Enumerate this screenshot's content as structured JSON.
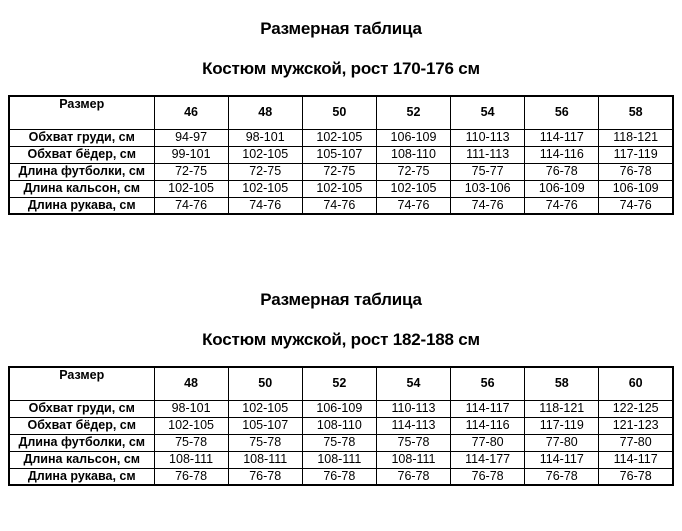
{
  "page": {
    "background": "#ffffff",
    "text_color": "#000000",
    "border_color": "#000000"
  },
  "sections": [
    {
      "title": "Размерная таблица",
      "subtitle": "Костюм мужской, рост 170-176 см",
      "corner_label": "Размер",
      "sizes": [
        "46",
        "48",
        "50",
        "52",
        "54",
        "56",
        "58"
      ],
      "rows": [
        {
          "label": "Обхват груди, см",
          "values": [
            "94-97",
            "98-101",
            "102-105",
            "106-109",
            "110-113",
            "114-117",
            "118-121"
          ]
        },
        {
          "label": "Обхват бёдер, см",
          "values": [
            "99-101",
            "102-105",
            "105-107",
            "108-110",
            "111-113",
            "114-116",
            "117-119"
          ]
        },
        {
          "label": "Длина футболки, см",
          "values": [
            "72-75",
            "72-75",
            "72-75",
            "72-75",
            "75-77",
            "76-78",
            "76-78"
          ]
        },
        {
          "label": "Длина кальсон, см",
          "values": [
            "102-105",
            "102-105",
            "102-105",
            "102-105",
            "103-106",
            "106-109",
            "106-109"
          ]
        },
        {
          "label": "Длина рукава, см",
          "values": [
            "74-76",
            "74-76",
            "74-76",
            "74-76",
            "74-76",
            "74-76",
            "74-76"
          ]
        }
      ]
    },
    {
      "title": "Размерная таблица",
      "subtitle": "Костюм мужской, рост 182-188 см",
      "corner_label": "Размер",
      "sizes": [
        "48",
        "50",
        "52",
        "54",
        "56",
        "58",
        "60"
      ],
      "rows": [
        {
          "label": "Обхват груди, см",
          "values": [
            "98-101",
            "102-105",
            "106-109",
            "110-113",
            "114-117",
            "118-121",
            "122-125"
          ]
        },
        {
          "label": "Обхват бёдер, см",
          "values": [
            "102-105",
            "105-107",
            "108-110",
            "114-113",
            "114-116",
            "117-119",
            "121-123"
          ]
        },
        {
          "label": "Длина футболки, см",
          "values": [
            "75-78",
            "75-78",
            "75-78",
            "75-78",
            "77-80",
            "77-80",
            "77-80"
          ]
        },
        {
          "label": "Длина кальсон, см",
          "values": [
            "108-111",
            "108-111",
            "108-111",
            "108-111",
            "114-177",
            "114-117",
            "114-117"
          ]
        },
        {
          "label": "Длина рукава, см",
          "values": [
            "76-78",
            "76-78",
            "76-78",
            "76-78",
            "76-78",
            "76-78",
            "76-78"
          ]
        }
      ]
    }
  ]
}
